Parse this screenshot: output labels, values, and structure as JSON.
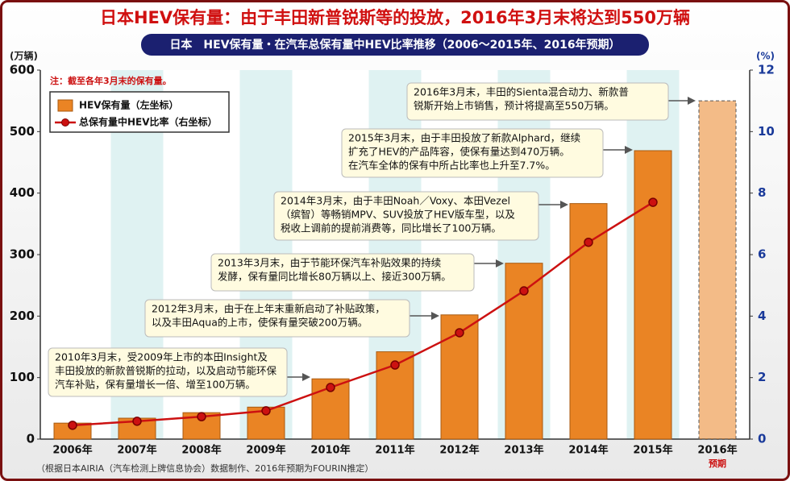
{
  "chart_data": {
    "type": "bar",
    "title": "日本HEV保有量：由于丰田新普锐斯等的投放，2016年3月末将达到550万辆",
    "subtitle": "日本　HEV保有量・在汽车总保有量中HEV比率推移（2006～2015年、2016年预期）",
    "note": "注：截至各年3月末的保有量。",
    "source": "（根据日本AIRIA（汽车检测上牌信息协会）数据制作、2016年预期为FOURIN推定）",
    "y_axis_unit": "(万辆)",
    "y2_axis_unit": "(%)",
    "categories": [
      "2006年",
      "2007年",
      "2008年",
      "2009年",
      "2010年",
      "2011年",
      "2012年",
      "2013年",
      "2014年",
      "2015年",
      "2016年"
    ],
    "category_notes": [
      null,
      null,
      null,
      null,
      null,
      null,
      null,
      null,
      null,
      null,
      "预期"
    ],
    "series": [
      {
        "name": "HEV保有量（左坐标）",
        "type": "bar",
        "color": "#ea8424",
        "values": [
          26,
          34,
          43,
          52,
          98,
          142,
          202,
          286,
          383,
          469,
          550
        ]
      },
      {
        "name": "总保有量中HEV比率（右坐标）",
        "type": "line",
        "axis": "y2",
        "color": "#cc1111",
        "values": [
          0.45,
          0.58,
          0.73,
          0.92,
          1.68,
          2.41,
          3.46,
          4.82,
          6.4,
          7.7,
          null
        ]
      }
    ],
    "ylim": [
      0,
      600
    ],
    "yticks": [
      0,
      100,
      200,
      300,
      400,
      500,
      600
    ],
    "y2lim": [
      0,
      12
    ],
    "y2ticks": [
      0,
      2,
      4,
      6,
      8,
      10,
      12
    ],
    "annotations": [
      {
        "lines": [
          "2010年3月末，受2009年上市的本田Insight及",
          "丰田投放的新款普锐斯的拉动，以及启动节能环保",
          "汽车补贴，保有量增长一倍、增至100万辆。"
        ]
      },
      {
        "lines": [
          "2012年3月末，由于在上年末重新启动了补贴政策，",
          "以及丰田Aqua的上市，使保有量突破200万辆。"
        ]
      },
      {
        "lines": [
          "2013年3月末，由于节能环保汽车补贴效果的持续",
          "发酵，保有量同比增长80万辆以上、接近300万辆。"
        ]
      },
      {
        "lines": [
          "2014年3月末，由于丰田Noah／Voxy、本田Vezel",
          "（缤智）等畅销MPV、SUV投放了HEV版车型，以及",
          "税收上调前的提前消费等，同比增长了100万辆。"
        ]
      },
      {
        "lines": [
          "2015年3月末，由于丰田投放了新款Alphard，继续",
          "扩充了HEV的产品阵容，使保有量达到470万辆。",
          "在汽车全体的保有中所占比率也上升至7.7%。"
        ]
      },
      {
        "lines": [
          "2016年3月末，丰田的Sienta混合动力、新款普",
          "锐斯开始上市销售，预计将提高至550万辆。"
        ]
      }
    ]
  }
}
